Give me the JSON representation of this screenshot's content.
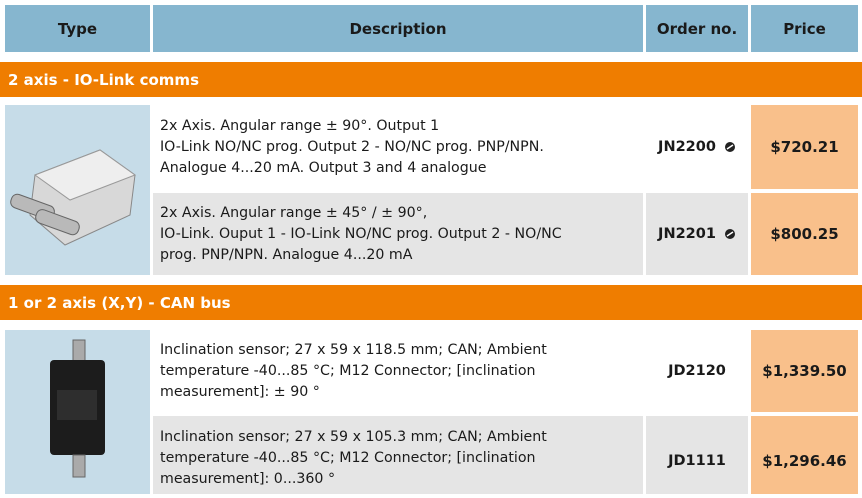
{
  "header": {
    "columns": [
      "Type",
      "Description",
      "Order no.",
      "Price"
    ]
  },
  "sections": [
    {
      "title": "2 axis - IO-Link comms",
      "rows": [
        {
          "description": [
            "2x Axis. Angular range ± 90°. Output 1",
            "IO-Link NO/NC prog. Output 2 - NO/NC prog. PNP/NPN.",
            "Analogue 4...20 mA. Output 3 and 4 analogue"
          ],
          "order_no": "JN2200",
          "price": "$720.21"
        },
        {
          "description": [
            "2x Axis. Angular range ± 45° / ± 90°,",
            "IO-Link. Ouput 1 - IO-Link NO/NC prog. Output 2 - NO/NC",
            "prog. PNP/NPN. Analogue 4...20 mA"
          ],
          "order_no": "JN2201",
          "price": "$800.25"
        }
      ]
    },
    {
      "title": "1 or 2 axis (X,Y) - CAN bus",
      "rows": [
        {
          "description": [
            "Inclination sensor; 27 x 59 x 118.5 mm; CAN; Ambient",
            "temperature -40...85 °C; M12 Connector; [inclination",
            "measurement]: ± 90 °"
          ],
          "order_no": "JD2120",
          "price": "$1,339.50"
        },
        {
          "description": [
            "Inclination sensor; 27 x 59 x 105.3 mm; CAN; Ambient",
            "temperature -40...85 °C; M12 Connector; [inclination",
            "measurement]: 0...360 °"
          ],
          "order_no": "JD1111",
          "price": "$1,296.46"
        }
      ]
    }
  ]
}
